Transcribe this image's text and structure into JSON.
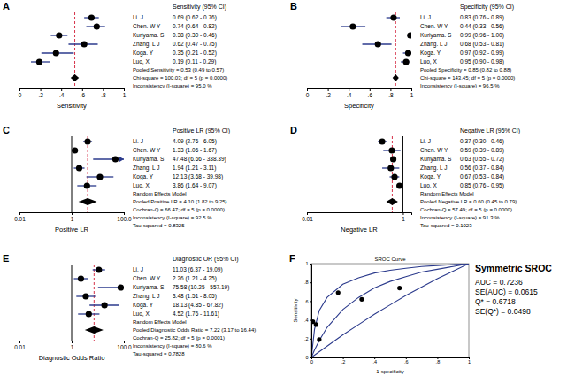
{
  "chart_data": [
    {
      "type": "forest",
      "panel": "A",
      "title": "Sensitivity (95% CI)",
      "x_label": "Sensitivity",
      "categories": [
        "Li. J",
        "Chen. W Y",
        "Kuriyama. S",
        "Zhang. L J",
        "Koga. Y",
        "Luo, X"
      ],
      "values": [
        0.69,
        0.74,
        0.38,
        0.62,
        0.35,
        0.19
      ],
      "ci_low": [
        0.62,
        0.64,
        0.3,
        0.47,
        0.21,
        0.11
      ],
      "ci_high": [
        0.76,
        0.82,
        0.46,
        0.75,
        0.52,
        0.29
      ],
      "value_labels": [
        "0.69 (0.62 - 0.76)",
        "0.74 (0.64 - 0.82)",
        "0.38 (0.30 - 0.46)",
        "0.62 (0.47 - 0.75)",
        "0.35 (0.21 - 0.52)",
        "0.19 (0.11 - 0.29)"
      ],
      "pooled": {
        "value": 0.53,
        "low": 0.49,
        "high": 0.57
      },
      "annotations": [
        "Pooled Sensitivity = 0.53 (0.49 to 0.57)",
        "Chi-square = 100.03; df = 5 (p = 0.0000)",
        "Inconsistency (I-square) = 95.0 %"
      ],
      "xlim": [
        0,
        1
      ],
      "xticks": [
        0,
        {
          "value": 0.2,
          "label": ".2"
        },
        {
          "value": 0.4,
          "label": ".4"
        },
        {
          "value": 0.6,
          "label": ".6"
        },
        {
          "value": 0.8,
          "label": ".8"
        },
        1
      ]
    },
    {
      "type": "forest",
      "panel": "B",
      "title": "Specificity (95% CI)",
      "x_label": "Specificity",
      "categories": [
        "Li. J",
        "Chen. W Y",
        "Kuriyama. S",
        "Zhang. L J",
        "Koga. Y",
        "Luo, X"
      ],
      "values": [
        0.83,
        0.44,
        0.99,
        0.68,
        0.97,
        0.95
      ],
      "ci_low": [
        0.76,
        0.33,
        0.96,
        0.53,
        0.92,
        0.9
      ],
      "ci_high": [
        0.89,
        0.56,
        1.0,
        0.81,
        0.99,
        0.98
      ],
      "value_labels": [
        "0.83 (0.76 - 0.89)",
        "0.44 (0.33 - 0.56)",
        "0.99 (0.96 - 1.00)",
        "0.68 (0.53 - 0.81)",
        "0.97 (0.92 - 0.99)",
        "0.95 (0.90 - 0.98)"
      ],
      "pooled": {
        "value": 0.85,
        "low": 0.82,
        "high": 0.88
      },
      "annotations": [
        "Pooled Specificity = 0.85 (0.82 to 0.88)",
        "Chi-square = 143.45; df = 5 (p = 0.0000)",
        "Inconsistency (I-square) = 96.5 %"
      ],
      "xlim": [
        0,
        1
      ],
      "xticks": [
        0,
        {
          "value": 0.2,
          "label": ".2"
        },
        {
          "value": 0.4,
          "label": ".4"
        },
        {
          "value": 0.6,
          "label": ".6"
        },
        {
          "value": 0.8,
          "label": ".8"
        },
        1
      ]
    },
    {
      "type": "forest",
      "panel": "C",
      "title": "Positive LR (95% CI)",
      "x_label": "Positive LR",
      "categories": [
        "Li. J",
        "Chen. W Y",
        "Kuriyama. S",
        "Zhang. L J",
        "Koga. Y",
        "Luo, X"
      ],
      "values": [
        4.09,
        1.33,
        47.48,
        1.94,
        12.13,
        3.86
      ],
      "ci_low": [
        2.76,
        1.06,
        6.66,
        1.21,
        3.68,
        1.64
      ],
      "ci_high": [
        6.05,
        1.67,
        338.39,
        3.11,
        39.98,
        9.07
      ],
      "value_labels": [
        "4.09 (2.76 - 6.05)",
        "1.33 (1.06 - 1.67)",
        "47.48 (6.66 - 338.39)",
        "1.94 (1.21 - 3.11)",
        "12.13 (3.68 - 39.98)",
        "3.86 (1.64 - 9.07)"
      ],
      "pooled": {
        "value": 4.1,
        "low": 1.82,
        "high": 9.25
      },
      "annotations": [
        "Random Effects Model",
        "Pooled Positive LR = 4.10 (1.82 to 9.25)",
        "Cochran-Q = 66.47; df = 5 (p = 0.0000)",
        "Inconsistency (I-square) = 92.5 %",
        "Tau-squared = 0.8325"
      ],
      "log": "x",
      "reference_line": 1,
      "xlim": [
        0.01,
        100
      ],
      "xticks": [
        0.01,
        1,
        {
          "value": 100,
          "label": "100.0"
        }
      ]
    },
    {
      "type": "forest",
      "panel": "D",
      "title": "Negative LR (95% CI)",
      "x_label": "Negative LR",
      "categories": [
        "Li. J",
        "Chen. W Y",
        "Kuriyama. S",
        "Zhang. L J",
        "Koga. Y",
        "Luo, X"
      ],
      "values": [
        0.37,
        0.59,
        0.63,
        0.56,
        0.67,
        0.85
      ],
      "ci_low": [
        0.3,
        0.39,
        0.55,
        0.37,
        0.53,
        0.76
      ],
      "ci_high": [
        0.46,
        0.89,
        0.72,
        0.84,
        0.84,
        0.95
      ],
      "value_labels": [
        "0.37 (0.30 - 0.46)",
        "0.59 (0.39 - 0.89)",
        "0.63 (0.55 - 0.72)",
        "0.56 (0.37 - 0.84)",
        "0.67 (0.53 - 0.84)",
        "0.85 (0.76 - 0.95)"
      ],
      "pooled": {
        "value": 0.6,
        "low": 0.45,
        "high": 0.79
      },
      "annotations": [
        "Random Effects Model",
        "Pooled Negative LR = 0.60 (0.45 to 0.79)",
        "Cochran-Q = 57.49; df = 5 (p = 0.0000)",
        "Inconsistency (I-square) = 91.3 %",
        "Tau-squared = 0.1023"
      ],
      "log": "x",
      "reference_line": 1,
      "xlim": [
        0.01,
        1.5
      ],
      "xticks": [
        0.01,
        1
      ]
    },
    {
      "type": "forest",
      "panel": "E",
      "title": "Diagnostic OR (95% CI)",
      "x_label": "Diagnostic Odds Ratio",
      "categories": [
        "Li. J",
        "Chen. W Y",
        "Kuriyama. S",
        "Zhang. L J",
        "Koga. Y",
        "Luo, X"
      ],
      "values": [
        11.03,
        2.26,
        75.58,
        3.48,
        18.13,
        4.52
      ],
      "ci_low": [
        6.37,
        1.21,
        10.25,
        1.51,
        4.85,
        1.76
      ],
      "ci_high": [
        19.09,
        4.25,
        557.19,
        8.05,
        67.82,
        11.61
      ],
      "value_labels": [
        "11.03 (6.37 - 19.09)",
        "2.26 (1.21 - 4.25)",
        "75.58 (10.25 - 557.19)",
        "3.48 (1.51 - 8.05)",
        "18.13 (4.85 - 67.82)",
        "4.52 (1.76 - 11.61)"
      ],
      "pooled": {
        "value": 7.22,
        "low": 3.17,
        "high": 16.44
      },
      "annotations": [
        "Random Effects Model",
        "Pooled Diagnostic Odds Ratio = 7.22 (3.17 to 16.44)",
        "Cochran-Q = 25.82; df = 5 (p = 0.0001)",
        "Inconsistency (I-square) = 80.6 %",
        "Tau-squared = 0.7828"
      ],
      "log": "x",
      "reference_line": 1,
      "xlim": [
        0.01,
        100
      ],
      "xticks": [
        0.01,
        1,
        {
          "value": 100,
          "label": "100.0"
        }
      ]
    },
    {
      "type": "scatter",
      "panel": "F",
      "title": "SROC Curve",
      "x_label": "1-specificity",
      "y_label": "Sensitivity",
      "x": [
        0.17,
        0.56,
        0.01,
        0.32,
        0.03,
        0.05
      ],
      "values": [
        0.69,
        0.74,
        0.38,
        0.62,
        0.35,
        0.19
      ],
      "series": [
        {
          "type": "line",
          "x": [
            0,
            0.02,
            0.05,
            0.1,
            0.2,
            0.3,
            0.4,
            0.5,
            0.6,
            0.7,
            0.8,
            0.9,
            1
          ],
          "values": [
            0,
            0.08,
            0.18,
            0.32,
            0.51,
            0.64,
            0.74,
            0.81,
            0.86,
            0.91,
            0.94,
            0.97,
            1
          ]
        },
        {
          "type": "line",
          "x": [
            0,
            0.02,
            0.05,
            0.1,
            0.2,
            0.3,
            0.4,
            0.5,
            0.6,
            0.7,
            0.8,
            0.9,
            1
          ],
          "values": [
            0,
            0.3,
            0.5,
            0.64,
            0.78,
            0.85,
            0.9,
            0.93,
            0.95,
            0.97,
            0.98,
            0.99,
            1
          ]
        },
        {
          "type": "line",
          "x": [
            0,
            0.1,
            0.2,
            0.3,
            0.4,
            0.5,
            0.6,
            0.7,
            0.8,
            0.9,
            1
          ],
          "values": [
            0,
            0.12,
            0.24,
            0.35,
            0.46,
            0.56,
            0.66,
            0.75,
            0.84,
            0.92,
            1
          ]
        }
      ],
      "annotations": [
        "Symmetric SROC",
        "AUC = 0.7236",
        "SE(AUC) = 0.0615",
        "Q* = 0.6718",
        "SE(Q*) = 0.0498"
      ],
      "xlim": [
        0,
        1
      ],
      "ylim": [
        0,
        1
      ],
      "xticks": [
        0,
        {
          "value": 0.2,
          "label": ".2"
        },
        {
          "value": 0.4,
          "label": ".4"
        },
        {
          "value": 0.6,
          "label": ".6"
        },
        {
          "value": 0.8,
          "label": ".8"
        },
        1
      ],
      "yticks": [
        0,
        {
          "value": 0.2,
          "label": ".2"
        },
        {
          "value": 0.4,
          "label": ".4"
        },
        {
          "value": 0.6,
          "label": ".6"
        },
        {
          "value": 0.8,
          "label": ".8"
        },
        1
      ]
    }
  ]
}
